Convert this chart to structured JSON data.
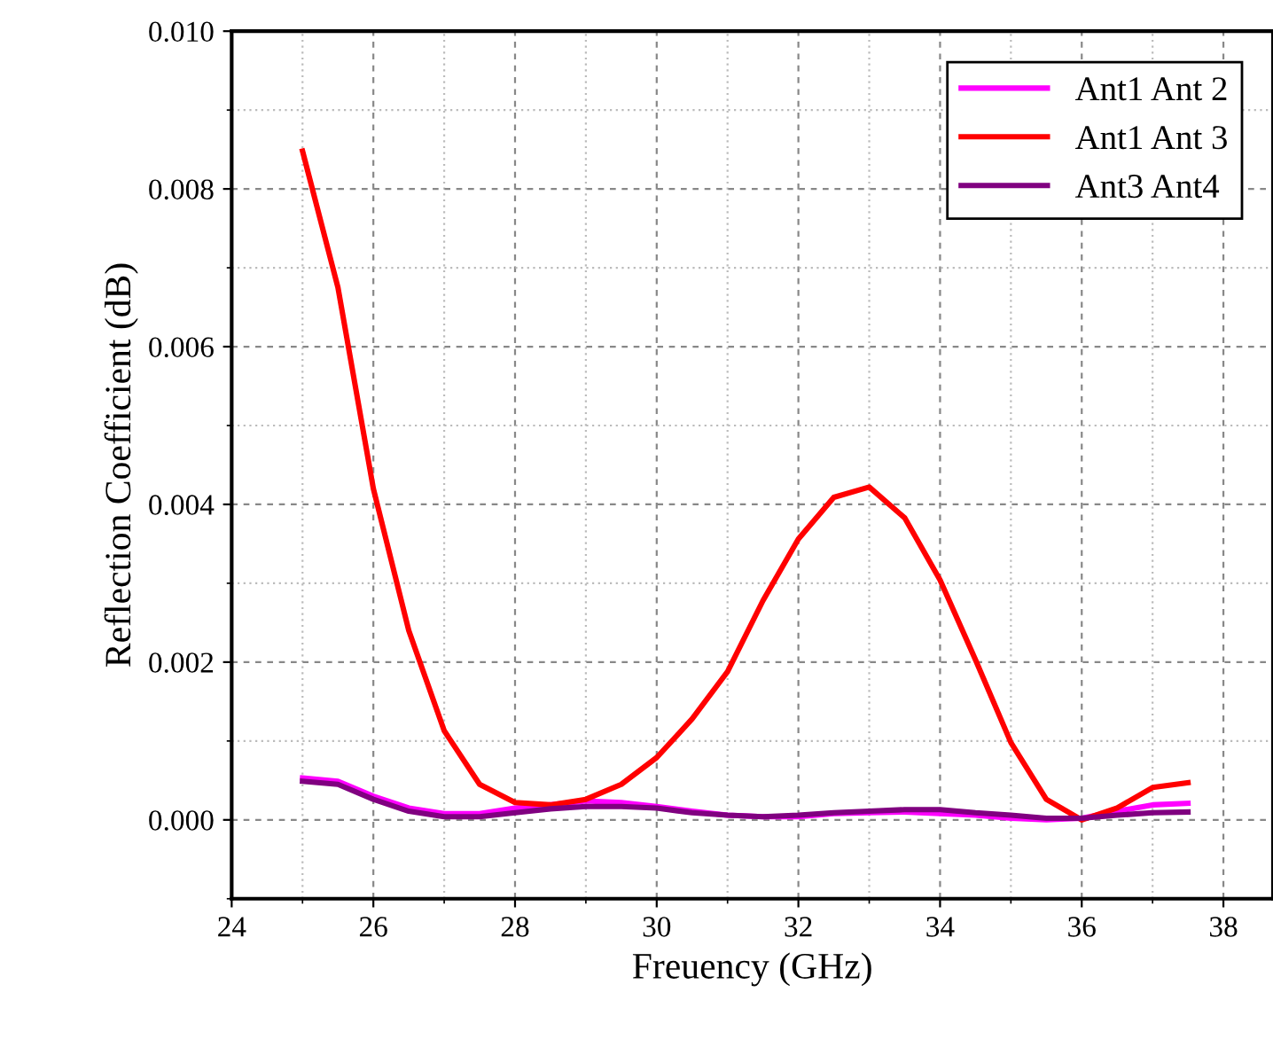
{
  "chart_data": {
    "type": "line",
    "xlabel": "Freuency (GHz)",
    "ylabel": "Reflection Coefficient (dB)",
    "x": [
      25,
      25.5,
      26,
      26.5,
      27,
      27.5,
      28,
      28.5,
      29,
      29.5,
      30,
      30.5,
      31,
      31.5,
      32,
      32.5,
      33,
      33.5,
      34,
      34.5,
      35,
      35.5,
      36,
      36.5,
      37,
      37.5
    ],
    "series": [
      {
        "name": "Ant1 Ant 2",
        "color": "#ff00ff",
        "values": [
          0.00053,
          0.00049,
          0.0003,
          0.00015,
          8e-05,
          8e-05,
          0.00015,
          0.00019,
          0.00024,
          0.00022,
          0.00017,
          0.00011,
          6e-05,
          4e-05,
          4e-05,
          8e-05,
          9e-05,
          0.0001,
          8e-05,
          6e-05,
          2e-05,
          0.0,
          2e-05,
          0.00011,
          0.00019,
          0.00021
        ]
      },
      {
        "name": "Ant1 Ant 3",
        "color": "#ff0000",
        "values": [
          0.00848,
          0.00675,
          0.0042,
          0.0024,
          0.00113,
          0.00045,
          0.00022,
          0.00019,
          0.00026,
          0.00045,
          0.00079,
          0.00128,
          0.00188,
          0.00278,
          0.00356,
          0.00409,
          0.00422,
          0.00383,
          0.00304,
          0.00203,
          0.00098,
          0.00026,
          0.0,
          0.00015,
          0.00041,
          0.00047
        ]
      },
      {
        "name": "Ant3 Ant4",
        "color": "#800080",
        "values": [
          0.00049,
          0.00045,
          0.00026,
          0.00011,
          4e-05,
          4e-05,
          9e-05,
          0.00014,
          0.00017,
          0.00017,
          0.00015,
          9e-05,
          6e-05,
          4e-05,
          6e-05,
          9e-05,
          0.00011,
          0.00013,
          0.00013,
          9e-05,
          6e-05,
          2e-05,
          2e-05,
          6e-05,
          9e-05,
          0.0001
        ]
      }
    ],
    "xlim": [
      24,
      38.7
    ],
    "xticks": [
      24,
      26,
      28,
      30,
      32,
      34,
      36,
      38
    ],
    "ylim": [
      -0.001,
      0.01
    ],
    "yticks": [
      {
        "value": 0.0,
        "label": "0.000"
      },
      {
        "value": 0.002,
        "label": "0.002"
      },
      {
        "value": 0.004,
        "label": "0.004"
      },
      {
        "value": 0.006,
        "label": "0.006"
      },
      {
        "value": 0.008,
        "label": "0.008"
      },
      {
        "value": 0.01,
        "label": "0.010"
      }
    ],
    "grid": true,
    "legend": "top right",
    "marker": "none",
    "line_style": "solid"
  }
}
